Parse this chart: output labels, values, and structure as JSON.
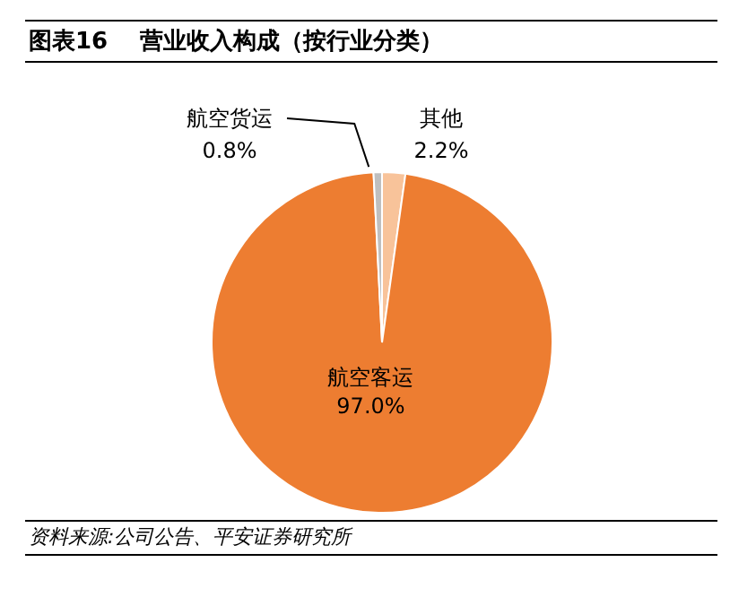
{
  "chart_data": {
    "type": "pie",
    "title": "图表16    营业收入构成（按行业分类）",
    "categories": [
      "其他",
      "航空客运",
      "航空货运"
    ],
    "values": [
      2.2,
      97.0,
      0.8
    ],
    "value_labels": [
      "2.2%",
      "97.0%",
      "0.8%"
    ],
    "colors": [
      "#f8c39a",
      "#ed7d31",
      "#bfbfbf"
    ],
    "annotations": [
      "资料来源:公司公告、平安证券研究所"
    ],
    "legend": false
  }
}
